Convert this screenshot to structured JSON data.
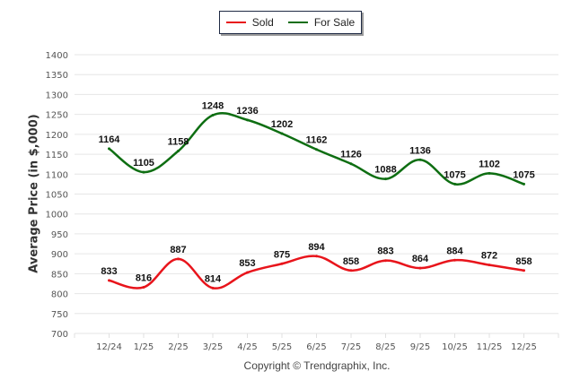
{
  "chart_data": {
    "type": "line",
    "title": "",
    "xlabel": "",
    "ylabel": "Average Price (in $,000)",
    "ylim": [
      700,
      1400
    ],
    "yticks": [
      700,
      750,
      800,
      850,
      900,
      950,
      1000,
      1050,
      1100,
      1150,
      1200,
      1250,
      1300,
      1350,
      1400
    ],
    "grid": true,
    "legend_position": "top-center",
    "categories": [
      "12/24",
      "1/25",
      "2/25",
      "3/25",
      "4/25",
      "5/25",
      "6/25",
      "7/25",
      "8/25",
      "9/25",
      "10/25",
      "11/25",
      "12/25"
    ],
    "series": [
      {
        "name": "Sold",
        "color": "#e8141b",
        "values": [
          833,
          816,
          887,
          814,
          853,
          875,
          894,
          858,
          883,
          864,
          884,
          872,
          858
        ]
      },
      {
        "name": "For Sale",
        "color": "#0e6e12",
        "values": [
          1164,
          1105,
          1158,
          1248,
          1236,
          1202,
          1162,
          1126,
          1088,
          1136,
          1075,
          1102,
          1075
        ]
      }
    ]
  },
  "legend": {
    "items": [
      "Sold",
      "For Sale"
    ]
  },
  "footer": {
    "copyright": "Copyright © Trendgraphix, Inc."
  }
}
